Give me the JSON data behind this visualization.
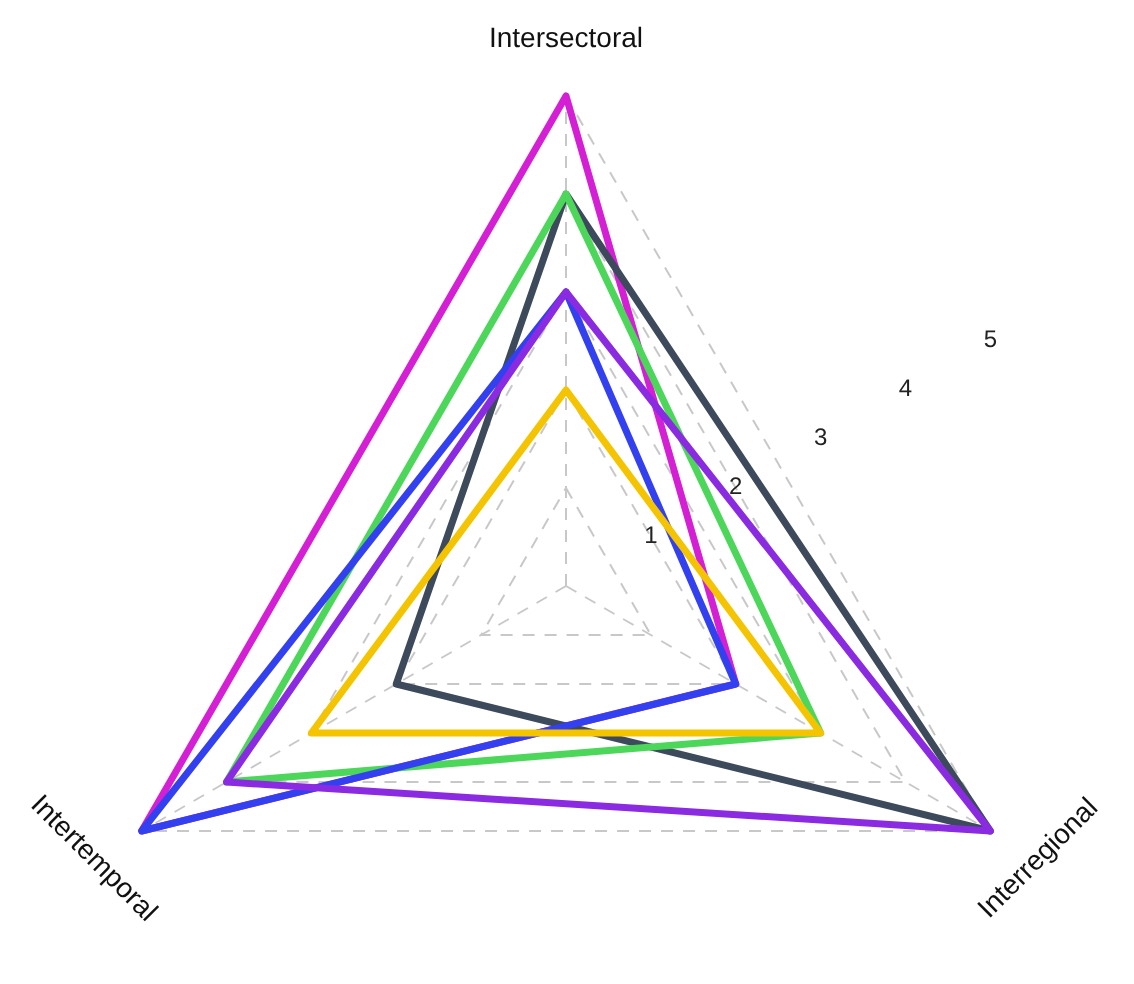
{
  "chart_data": {
    "type": "radar",
    "categories": [
      "Intersectoral",
      "Interregional",
      "Intertemporal"
    ],
    "series": [
      {
        "color": "#d41fd4",
        "values": [
          5,
          2,
          5
        ]
      },
      {
        "color": "#3d4a5c",
        "values": [
          4,
          5,
          2
        ]
      },
      {
        "color": "#4cd65a",
        "values": [
          4,
          3,
          4
        ]
      },
      {
        "color": "#3340f0",
        "values": [
          3,
          2,
          5
        ]
      },
      {
        "color": "#8a2be2",
        "values": [
          3,
          5,
          4
        ]
      },
      {
        "color": "#f5c400",
        "values": [
          2,
          3,
          3
        ]
      }
    ],
    "ylim": [
      0,
      5
    ],
    "yticks": [
      1,
      2,
      3,
      4,
      5
    ],
    "grid": true
  }
}
